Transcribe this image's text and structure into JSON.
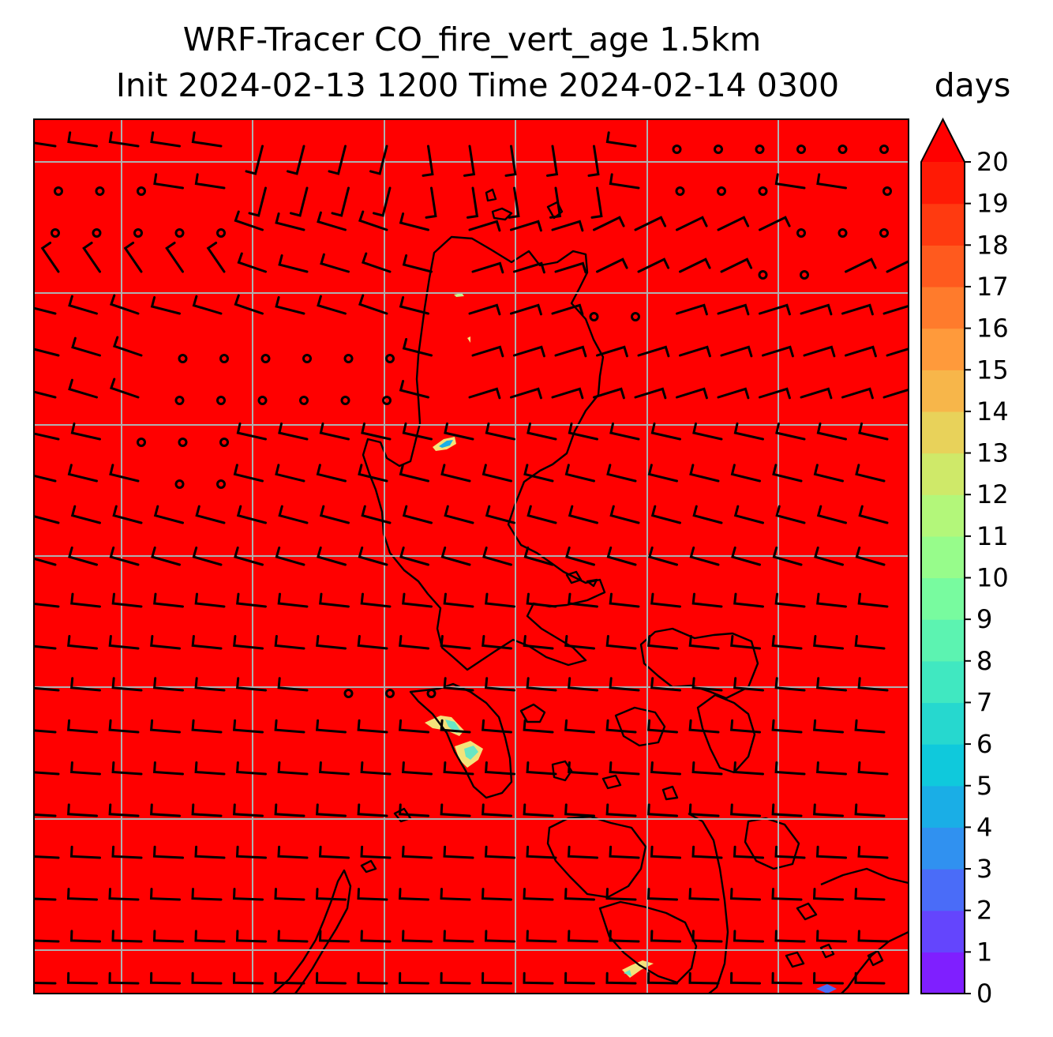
{
  "title_line1": "WRF-Tracer CO_fire_vert_age 1.5km",
  "title_line2": "Init 2024-02-13 1200 Time 2024-02-14 0300",
  "colorbar": {
    "units": "days",
    "min": 0,
    "max": 20,
    "extend": "max",
    "ticks": [
      "0",
      "1",
      "2",
      "3",
      "4",
      "5",
      "6",
      "7",
      "8",
      "9",
      "10",
      "11",
      "12",
      "13",
      "14",
      "15",
      "16",
      "17",
      "18",
      "19",
      "20"
    ],
    "colors": [
      "#7f1fff",
      "#6445fd",
      "#4a6cf8",
      "#3091f0",
      "#1aaee6",
      "#0fc9dc",
      "#26d8cf",
      "#40e8c1",
      "#5cf3b1",
      "#78fb9f",
      "#97fc8b",
      "#b3f77a",
      "#cfe969",
      "#e8d25a",
      "#f7b64a",
      "#ff9a3b",
      "#ff7b2c",
      "#ff5a1e",
      "#ff3a10",
      "#ff1a05"
    ],
    "over_color": "#ff0000"
  },
  "map": {
    "field_value_days": 20,
    "field_color": "#ff0000",
    "coastline_color": "#000000",
    "gridline_color": "#b0b0b0",
    "wind_barb_color": "#000000",
    "patch_colors": [
      "#f4e27a",
      "#69e6c4",
      "#1aaee6"
    ]
  }
}
